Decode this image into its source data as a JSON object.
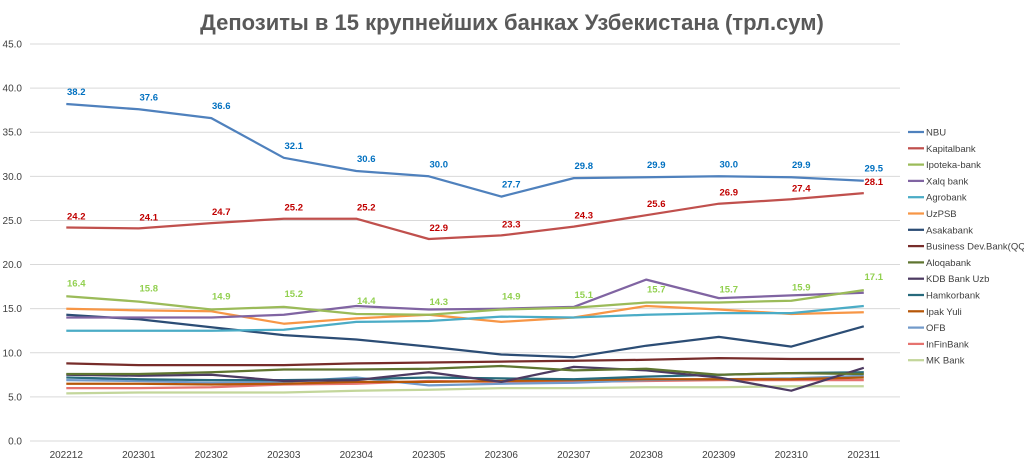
{
  "chart_data": {
    "type": "line",
    "title": "Депозиты в 15 крупнейших банках Узбекистана (трл.сум)",
    "xlabel": "",
    "ylabel": "",
    "ylim": [
      0,
      45
    ],
    "yticks": [
      "0.0",
      "5.0",
      "10.0",
      "15.0",
      "20.0",
      "25.0",
      "30.0",
      "35.0",
      "40.0",
      "45.0"
    ],
    "categories": [
      "202212",
      "202301",
      "202302",
      "202303",
      "202304",
      "202305",
      "202306",
      "202307",
      "202308",
      "202309",
      "202310",
      "202311"
    ],
    "legend_position": "right",
    "grid": true,
    "series": [
      {
        "name": "NBU",
        "color": "#4F81BD",
        "label_color": "#0070C0",
        "labeled": true,
        "values": [
          38.2,
          37.6,
          36.6,
          32.1,
          30.6,
          30.0,
          27.7,
          29.8,
          29.9,
          30.0,
          29.9,
          29.5
        ],
        "data_labels": [
          "38.2",
          "37.6",
          "36.6",
          "32.1",
          "30.6",
          "30.0",
          "27.7",
          "29.8",
          "29.9",
          "30.0",
          "29.9",
          "29.5"
        ]
      },
      {
        "name": "Kapitalbank",
        "color": "#C0504D",
        "label_color": "#C00000",
        "labeled": true,
        "values": [
          24.2,
          24.1,
          24.7,
          25.2,
          25.2,
          22.9,
          23.3,
          24.3,
          25.6,
          26.9,
          27.4,
          28.1
        ],
        "data_labels": [
          "24.2",
          "24.1",
          "24.7",
          "25.2",
          "25.2",
          "22.9",
          "23.3",
          "24.3",
          "25.6",
          "26.9",
          "27.4",
          "28.1"
        ]
      },
      {
        "name": "Ipoteka-bank",
        "color": "#9BBB59",
        "label_color": "#92D050",
        "labeled": true,
        "values": [
          16.4,
          15.8,
          14.9,
          15.2,
          14.4,
          14.3,
          14.9,
          15.1,
          15.7,
          15.7,
          15.9,
          17.1
        ],
        "data_labels": [
          "16.4",
          "15.8",
          "14.9",
          "15.2",
          "14.4",
          "14.3",
          "14.9",
          "15.1",
          "15.7",
          "15.7",
          "15.9",
          "17.1"
        ]
      },
      {
        "name": "Xalq bank",
        "color": "#8064A2",
        "labeled": false,
        "values": [
          14.0,
          14.0,
          14.0,
          14.3,
          15.3,
          14.9,
          15.0,
          15.2,
          18.3,
          16.2,
          16.5,
          16.8
        ]
      },
      {
        "name": "Agrobank",
        "color": "#4BACC6",
        "labeled": false,
        "values": [
          12.5,
          12.5,
          12.5,
          12.6,
          13.5,
          13.6,
          14.1,
          14.0,
          14.3,
          14.5,
          14.5,
          15.3
        ]
      },
      {
        "name": "UzPSB",
        "color": "#F79646",
        "labeled": false,
        "values": [
          15.0,
          14.8,
          14.7,
          13.3,
          13.9,
          14.3,
          13.5,
          14.0,
          15.3,
          14.9,
          14.4,
          14.6
        ]
      },
      {
        "name": "Asakabank",
        "color": "#2C4D75",
        "labeled": false,
        "values": [
          14.3,
          13.8,
          12.9,
          12.0,
          11.5,
          10.7,
          9.8,
          9.5,
          10.8,
          11.8,
          10.7,
          13.0
        ]
      },
      {
        "name": "Business Dev.Bank(QQB)",
        "color": "#772C2A",
        "labeled": false,
        "values": [
          8.8,
          8.6,
          8.6,
          8.6,
          8.8,
          8.9,
          9.0,
          9.1,
          9.2,
          9.4,
          9.3,
          9.3
        ]
      },
      {
        "name": "Aloqabank",
        "color": "#5F7530",
        "labeled": false,
        "values": [
          7.6,
          7.6,
          7.8,
          8.1,
          8.1,
          8.2,
          8.5,
          8.0,
          8.2,
          7.5,
          7.7,
          7.6
        ]
      },
      {
        "name": "KDB Bank Uzb",
        "color": "#4D3B62",
        "labeled": false,
        "values": [
          7.5,
          7.4,
          7.5,
          6.8,
          6.9,
          7.8,
          6.7,
          8.4,
          8.0,
          7.2,
          5.7,
          8.3
        ]
      },
      {
        "name": "Hamkorbank",
        "color": "#276A7C",
        "labeled": false,
        "values": [
          7.2,
          7.0,
          6.9,
          6.9,
          7.0,
          7.2,
          7.1,
          7.0,
          7.3,
          7.5,
          7.7,
          7.8
        ]
      },
      {
        "name": "Ipak Yuli",
        "color": "#B65708",
        "labeled": false,
        "values": [
          6.5,
          6.5,
          6.4,
          6.5,
          6.7,
          6.7,
          6.8,
          6.9,
          7.0,
          7.0,
          7.0,
          7.2
        ]
      },
      {
        "name": "OFB",
        "color": "#729ACA",
        "labeled": false,
        "values": [
          6.9,
          6.8,
          6.6,
          6.7,
          7.2,
          6.3,
          6.5,
          6.6,
          6.9,
          7.0,
          7.1,
          7.4
        ]
      },
      {
        "name": "InFinBank",
        "color": "#E6736F",
        "labeled": false,
        "values": [
          6.0,
          6.0,
          6.1,
          6.4,
          6.5,
          6.8,
          6.7,
          6.7,
          6.8,
          6.9,
          6.9,
          6.9
        ]
      },
      {
        "name": "MK Bank",
        "color": "#C3D69B",
        "labeled": false,
        "values": [
          5.4,
          5.5,
          5.5,
          5.5,
          5.7,
          5.8,
          6.0,
          6.0,
          6.1,
          6.1,
          6.2,
          6.2
        ]
      }
    ]
  }
}
